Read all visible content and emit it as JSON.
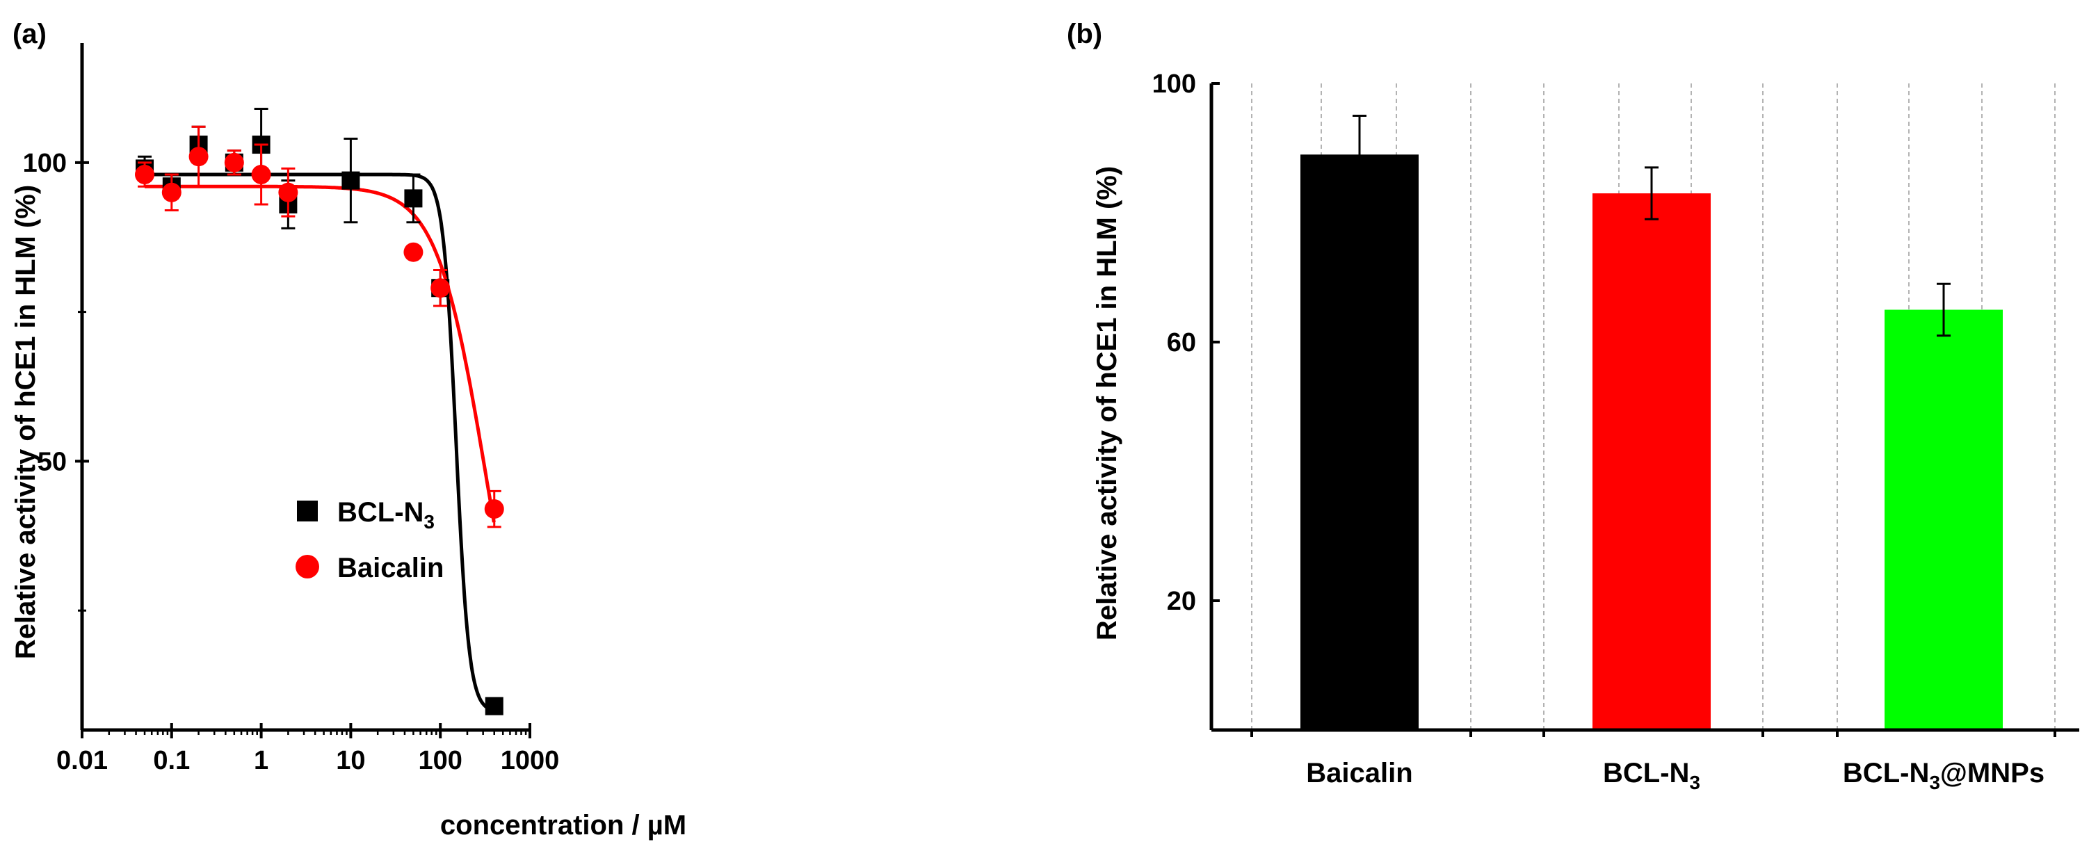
{
  "chart_data": [
    {
      "type": "scatter",
      "panel_label": "(a)",
      "xlabel": "concentration / µM",
      "ylabel": "Relative activity of  hCE1 in HLM (%)",
      "xscale": "log",
      "xlim": [
        0.01,
        1000
      ],
      "ylim": [
        5,
        120
      ],
      "xticks": [
        "0.01",
        "0.1",
        "1",
        "10",
        "100",
        "1000"
      ],
      "xtick_values": [
        0.01,
        0.1,
        1,
        10,
        100,
        1000
      ],
      "yticks": [
        "50",
        "100"
      ],
      "ytick_values": [
        50,
        100
      ],
      "legend_position": "middle-left",
      "series": [
        {
          "name": "BCL-N",
          "name_subscript": "3",
          "color": "#000000",
          "marker": "square",
          "x": [
            0.05,
            0.1,
            0.2,
            0.5,
            1,
            2,
            10,
            50,
            100,
            400
          ],
          "y": [
            99,
            96,
            103,
            100,
            103,
            93,
            97,
            94,
            79,
            9
          ],
          "err": [
            2,
            2,
            3,
            2,
            6,
            4,
            7,
            4,
            3,
            1
          ],
          "fit": {
            "top": 98,
            "bottom": 8,
            "ic50": 150,
            "hill": 6
          }
        },
        {
          "name": "Baicalin",
          "color": "#ff0000",
          "marker": "circle",
          "x": [
            0.05,
            0.1,
            0.2,
            0.5,
            1,
            2,
            50,
            100,
            400
          ],
          "y": [
            98,
            95,
            101,
            100,
            98,
            95,
            85,
            79,
            42
          ],
          "err": [
            2,
            3,
            5,
            2,
            5,
            4,
            1,
            3,
            3
          ],
          "fit": {
            "top": 96,
            "bottom": 0,
            "ic50": 320,
            "hill": 1.6
          }
        }
      ]
    },
    {
      "type": "bar",
      "panel_label": "(b)",
      "ylabel": "Relative activity of  hCE1 in HLM (%)",
      "ylim": [
        0,
        100
      ],
      "yticks": [
        "20",
        "60",
        "100"
      ],
      "ytick_values": [
        20,
        60,
        100
      ],
      "grid": "vertical dashed",
      "categories": [
        {
          "main": "Baicalin",
          "sub": "",
          "tail": ""
        },
        {
          "main": "BCL-N",
          "sub": "3",
          "tail": ""
        },
        {
          "main": "BCL-N",
          "sub": "3",
          "tail": "@MNPs"
        }
      ],
      "values": [
        89,
        83,
        65
      ],
      "errors": [
        6,
        4,
        4
      ],
      "colors": [
        "#000000",
        "#ff0000",
        "#00ff00"
      ]
    }
  ]
}
